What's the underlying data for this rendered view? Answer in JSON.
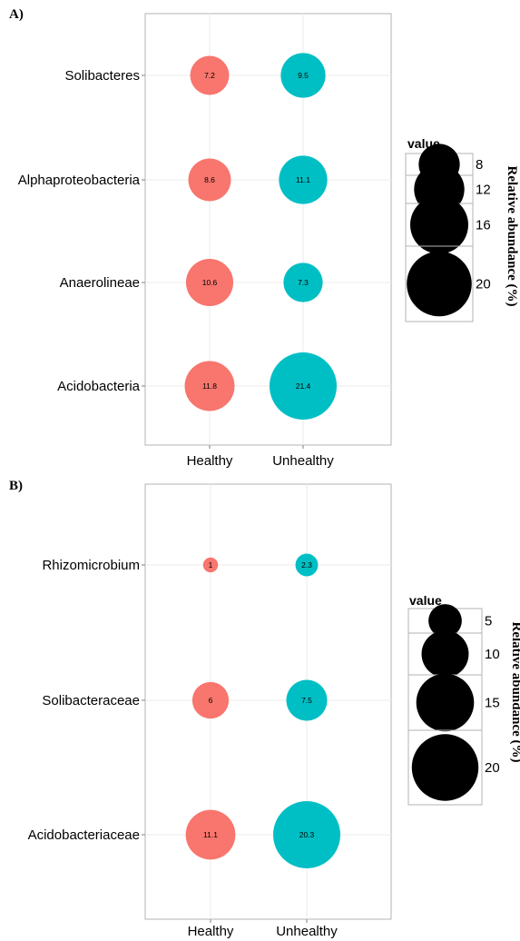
{
  "chart_data": [
    {
      "type": "scatter",
      "panel_label": "A)",
      "categories_x": [
        "Healthy",
        "Unhealthy"
      ],
      "categories_y": [
        "Solibacteres",
        "Alphaproteobacteria",
        "Anaerolineae",
        "Acidobacteria"
      ],
      "points": [
        {
          "x": "Healthy",
          "y": "Solibacteres",
          "value": 7.2,
          "label": "7.2"
        },
        {
          "x": "Unhealthy",
          "y": "Solibacteres",
          "value": 9.5,
          "label": "9.5"
        },
        {
          "x": "Healthy",
          "y": "Alphaproteobacteria",
          "value": 8.6,
          "label": "8.6"
        },
        {
          "x": "Unhealthy",
          "y": "Alphaproteobacteria",
          "value": 11.1,
          "label": "11.1"
        },
        {
          "x": "Healthy",
          "y": "Anaerolineae",
          "value": 10.6,
          "label": "10.6"
        },
        {
          "x": "Unhealthy",
          "y": "Anaerolineae",
          "value": 7.3,
          "label": "7.3"
        },
        {
          "x": "Healthy",
          "y": "Acidobacteria",
          "value": 11.8,
          "label": "11.8"
        },
        {
          "x": "Unhealthy",
          "y": "Acidobacteria",
          "value": 21.4,
          "label": "21.4"
        }
      ],
      "size_range": [
        7.2,
        21.4
      ],
      "legend": {
        "title": "value",
        "values": [
          8,
          12,
          16,
          20
        ],
        "labels": [
          "8",
          "12",
          "16",
          "20"
        ]
      },
      "side_label": "Relative abundance (%)",
      "grid": true
    },
    {
      "type": "scatter",
      "panel_label": "B)",
      "categories_x": [
        "Healthy",
        "Unhealthy"
      ],
      "categories_y": [
        "Rhizomicrobium",
        "Solibacteraceae",
        "Acidobacteriaceae"
      ],
      "points": [
        {
          "x": "Healthy",
          "y": "Rhizomicrobium",
          "value": 1,
          "label": "1"
        },
        {
          "x": "Unhealthy",
          "y": "Rhizomicrobium",
          "value": 2.3,
          "label": "2.3"
        },
        {
          "x": "Healthy",
          "y": "Solibacteraceae",
          "value": 6,
          "label": "6"
        },
        {
          "x": "Unhealthy",
          "y": "Solibacteraceae",
          "value": 7.5,
          "label": "7.5"
        },
        {
          "x": "Healthy",
          "y": "Acidobacteriaceae",
          "value": 11.1,
          "label": "11.1"
        },
        {
          "x": "Unhealthy",
          "y": "Acidobacteriaceae",
          "value": 20.3,
          "label": "20.3"
        }
      ],
      "size_range": [
        1,
        20.3
      ],
      "legend": {
        "title": "value",
        "values": [
          5,
          10,
          15,
          20
        ],
        "labels": [
          "5",
          "10",
          "15",
          "20"
        ]
      },
      "side_label": "Relative abundance (%)",
      "grid": true
    }
  ],
  "colors": {
    "healthy": "#f8766d",
    "unhealthy": "#00bfc4",
    "legend_dot": "#000000",
    "grid": "#ebebeb",
    "panel_border": "#b3b3b3"
  }
}
